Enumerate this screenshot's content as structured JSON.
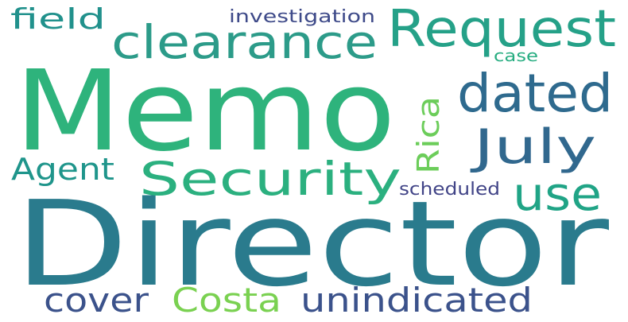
{
  "words": [
    {
      "id": "memo",
      "text": "Memo",
      "color": "#2eb37c",
      "orientation": "horizontal"
    },
    {
      "id": "director",
      "text": "Director",
      "color": "#2a7b8d",
      "orientation": "horizontal"
    },
    {
      "id": "request",
      "text": "Request",
      "color": "#25a188",
      "orientation": "horizontal"
    },
    {
      "id": "clearance",
      "text": "clearance",
      "color": "#2c9b89",
      "orientation": "horizontal"
    },
    {
      "id": "dated",
      "text": "dated",
      "color": "#2e6a8e",
      "orientation": "horizontal"
    },
    {
      "id": "july",
      "text": "July",
      "color": "#31688e",
      "orientation": "horizontal"
    },
    {
      "id": "security",
      "text": "Security",
      "color": "#2bb07f",
      "orientation": "horizontal"
    },
    {
      "id": "use",
      "text": "use",
      "color": "#20a486",
      "orientation": "horizontal"
    },
    {
      "id": "rica",
      "text": "Rica",
      "color": "#6ccd5a",
      "orientation": "vertical"
    },
    {
      "id": "agent",
      "text": "Agent",
      "color": "#1f958b",
      "orientation": "horizontal"
    },
    {
      "id": "field",
      "text": "field",
      "color": "#21918c",
      "orientation": "horizontal"
    },
    {
      "id": "investigation",
      "text": "investigation",
      "color": "#3e4a89",
      "orientation": "horizontal"
    },
    {
      "id": "case",
      "text": "case",
      "color": "#27ad81",
      "orientation": "horizontal"
    },
    {
      "id": "scheduled",
      "text": "scheduled",
      "color": "#414487",
      "orientation": "horizontal"
    },
    {
      "id": "cover",
      "text": "cover",
      "color": "#3b528b",
      "orientation": "horizontal"
    },
    {
      "id": "costa",
      "text": "Costa",
      "color": "#7ad151",
      "orientation": "horizontal"
    },
    {
      "id": "unindicated",
      "text": "unindicated",
      "color": "#3b528b",
      "orientation": "horizontal"
    }
  ]
}
